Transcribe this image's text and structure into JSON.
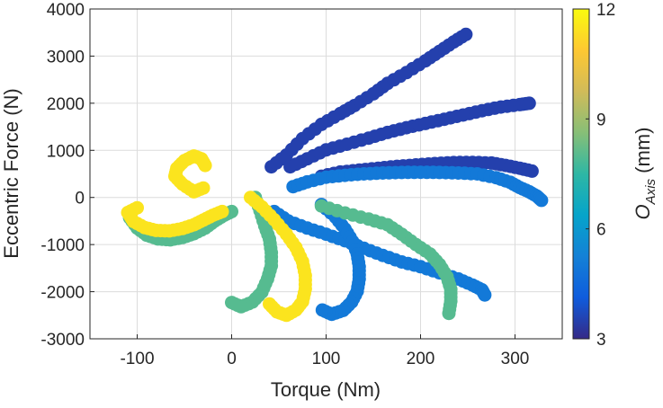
{
  "chart_data": {
    "type": "scatter",
    "title": "",
    "xlabel": "Torque (Nm)",
    "ylabel": "Eccentric Force (N)",
    "xlim": [
      -150,
      350
    ],
    "ylim": [
      -3000,
      4000
    ],
    "xticks": [
      -100,
      0,
      100,
      200,
      300
    ],
    "yticks": [
      -3000,
      -2000,
      -1000,
      0,
      1000,
      2000,
      3000,
      4000
    ],
    "xtick_labels": [
      "-100",
      "0",
      "100",
      "200",
      "300"
    ],
    "ytick_labels": [
      "-3000",
      "-2000",
      "-1000",
      "0",
      "1000",
      "2000",
      "3000",
      "4000"
    ],
    "grid": true,
    "colorbar": {
      "label_main": "O",
      "label_sub": "Axis",
      "label_unit": " (mm)",
      "range": [
        3,
        12
      ],
      "ticks": [
        3,
        6,
        9,
        12
      ],
      "tick_labels": [
        "3",
        "6",
        "9",
        "12"
      ],
      "colormap": "parula",
      "colors": [
        "#352a87",
        "#0f5cdd",
        "#1481d6",
        "#06a4ca",
        "#2eb7a4",
        "#87bf77",
        "#d1bb59",
        "#fec832",
        "#f9fb0e"
      ]
    },
    "series": [
      {
        "color_value": 3.5,
        "points": [
          [
            42,
            650
          ],
          [
            58,
            900
          ],
          [
            75,
            1250
          ],
          [
            95,
            1550
          ],
          [
            115,
            1780
          ],
          [
            130,
            1950
          ],
          [
            150,
            2200
          ],
          [
            165,
            2420
          ],
          [
            185,
            2650
          ],
          [
            205,
            2900
          ],
          [
            220,
            3100
          ],
          [
            235,
            3300
          ],
          [
            248,
            3460
          ]
        ]
      },
      {
        "color_value": 3.5,
        "points": [
          [
            62,
            650
          ],
          [
            80,
            820
          ],
          [
            100,
            1010
          ],
          [
            122,
            1130
          ],
          [
            145,
            1260
          ],
          [
            165,
            1380
          ],
          [
            185,
            1480
          ],
          [
            205,
            1570
          ],
          [
            225,
            1660
          ],
          [
            245,
            1750
          ],
          [
            265,
            1840
          ],
          [
            285,
            1920
          ],
          [
            305,
            1970
          ],
          [
            315,
            2000
          ]
        ]
      },
      {
        "color_value": 3.5,
        "points": [
          [
            95,
            450
          ],
          [
            115,
            540
          ],
          [
            135,
            580
          ],
          [
            155,
            620
          ],
          [
            175,
            660
          ],
          [
            195,
            690
          ],
          [
            215,
            720
          ],
          [
            235,
            740
          ],
          [
            255,
            745
          ],
          [
            275,
            730
          ],
          [
            290,
            680
          ],
          [
            305,
            620
          ],
          [
            318,
            560
          ]
        ]
      },
      {
        "color_value": 5.0,
        "points": [
          [
            65,
            230
          ],
          [
            80,
            330
          ],
          [
            100,
            430
          ],
          [
            120,
            470
          ],
          [
            140,
            500
          ],
          [
            160,
            520
          ],
          [
            180,
            530
          ],
          [
            200,
            535
          ],
          [
            220,
            530
          ],
          [
            240,
            520
          ],
          [
            260,
            500
          ],
          [
            280,
            420
          ],
          [
            295,
            320
          ],
          [
            305,
            210
          ],
          [
            315,
            120
          ],
          [
            323,
            30
          ],
          [
            328,
            -60
          ]
        ]
      },
      {
        "color_value": 5.0,
        "points": [
          [
            45,
            -300
          ],
          [
            60,
            -500
          ],
          [
            80,
            -650
          ],
          [
            100,
            -780
          ],
          [
            120,
            -920
          ],
          [
            140,
            -1080
          ],
          [
            160,
            -1230
          ],
          [
            180,
            -1370
          ],
          [
            200,
            -1470
          ],
          [
            220,
            -1600
          ],
          [
            240,
            -1730
          ],
          [
            255,
            -1860
          ],
          [
            265,
            -1960
          ],
          [
            268,
            -2070
          ]
        ]
      },
      {
        "color_value": 5.0,
        "points": [
          [
            95,
            -150
          ],
          [
            110,
            -420
          ],
          [
            120,
            -670
          ],
          [
            128,
            -930
          ],
          [
            133,
            -1200
          ],
          [
            135,
            -1470
          ],
          [
            135,
            -1730
          ],
          [
            133,
            -1990
          ],
          [
            127,
            -2220
          ],
          [
            118,
            -2400
          ],
          [
            106,
            -2480
          ],
          [
            96,
            -2390
          ]
        ]
      },
      {
        "color_value": 8.0,
        "points": [
          [
            95,
            -180
          ],
          [
            120,
            -330
          ],
          [
            145,
            -460
          ],
          [
            165,
            -580
          ],
          [
            180,
            -780
          ],
          [
            195,
            -1000
          ],
          [
            210,
            -1200
          ],
          [
            220,
            -1420
          ],
          [
            228,
            -1680
          ],
          [
            232,
            -1950
          ],
          [
            232,
            -2200
          ],
          [
            230,
            -2460
          ]
        ]
      },
      {
        "color_value": 8.0,
        "points": [
          [
            25,
            0
          ],
          [
            30,
            -280
          ],
          [
            35,
            -600
          ],
          [
            40,
            -880
          ],
          [
            42,
            -1170
          ],
          [
            42,
            -1450
          ],
          [
            38,
            -1730
          ],
          [
            32,
            -2010
          ],
          [
            22,
            -2220
          ],
          [
            10,
            -2320
          ],
          [
            0,
            -2230
          ]
        ]
      },
      {
        "color_value": 8.0,
        "points": [
          [
            -108,
            -430
          ],
          [
            -100,
            -650
          ],
          [
            -90,
            -800
          ],
          [
            -78,
            -880
          ],
          [
            -65,
            -900
          ],
          [
            -52,
            -850
          ],
          [
            -40,
            -770
          ],
          [
            -28,
            -650
          ],
          [
            -18,
            -500
          ],
          [
            -8,
            -380
          ],
          [
            0,
            -300
          ]
        ]
      },
      {
        "color_value": 11.5,
        "points": [
          [
            20,
            0
          ],
          [
            32,
            -200
          ],
          [
            45,
            -470
          ],
          [
            58,
            -780
          ],
          [
            68,
            -1060
          ],
          [
            75,
            -1360
          ],
          [
            78,
            -1660
          ],
          [
            78,
            -1940
          ],
          [
            75,
            -2210
          ],
          [
            68,
            -2390
          ],
          [
            58,
            -2500
          ],
          [
            48,
            -2430
          ],
          [
            40,
            -2260
          ]
        ]
      },
      {
        "color_value": 11.5,
        "points": [
          [
            -100,
            -220
          ],
          [
            -110,
            -320
          ],
          [
            -104,
            -510
          ],
          [
            -92,
            -640
          ],
          [
            -80,
            -700
          ],
          [
            -66,
            -710
          ],
          [
            -52,
            -660
          ],
          [
            -40,
            -580
          ],
          [
            -30,
            -480
          ],
          [
            -20,
            -380
          ],
          [
            -10,
            -300
          ]
        ]
      },
      {
        "color_value": 11.5,
        "points": [
          [
            -30,
            200
          ],
          [
            -40,
            120
          ],
          [
            -52,
            280
          ],
          [
            -60,
            450
          ],
          [
            -58,
            620
          ],
          [
            -50,
            780
          ],
          [
            -40,
            880
          ],
          [
            -32,
            820
          ],
          [
            -28,
            680
          ]
        ]
      }
    ]
  }
}
